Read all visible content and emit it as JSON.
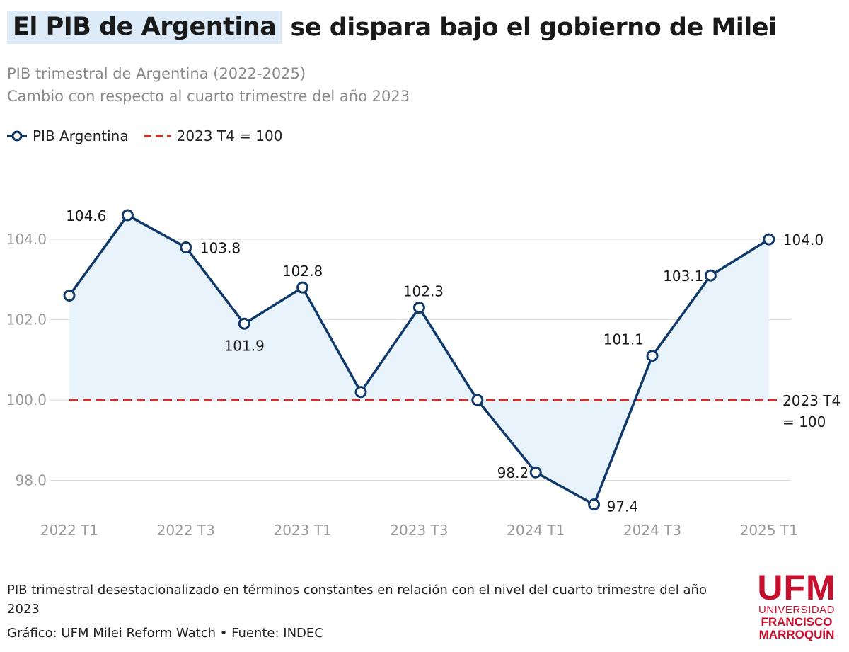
{
  "header": {
    "title_highlight": "El PIB de Argentina",
    "title_rest": "se dispara bajo el gobierno de Milei",
    "subtitle_line1": "PIB trimestral de Argentina (2022-2025)",
    "subtitle_line2": "Cambio con respecto al cuarto trimestre del año 2023"
  },
  "legend": {
    "series_label": "PIB Argentina",
    "baseline_label": "2023 T4 = 100"
  },
  "colors": {
    "series": "#0f3a6b",
    "fill": "#e8f3fb",
    "baseline": "#d0302a",
    "grid": "#dcdcdc",
    "tick": "#9a9a9a",
    "brand": "#c8102e"
  },
  "chart_data": {
    "type": "line",
    "title": "PIB trimestral de Argentina (2022-2025)",
    "x": [
      "2022 T1",
      "2022 T2",
      "2022 T3",
      "2022 T4",
      "2023 T1",
      "2023 T2",
      "2023 T3",
      "2023 T4",
      "2024 T1",
      "2024 T2",
      "2024 T3",
      "2024 T4",
      "2025 T1"
    ],
    "series": [
      {
        "name": "PIB Argentina",
        "values": [
          102.6,
          104.6,
          103.8,
          101.9,
          102.8,
          100.2,
          102.3,
          100.0,
          98.2,
          97.4,
          101.1,
          103.1,
          104.0
        ],
        "data_labels": [
          "",
          "104.6",
          "103.8",
          "101.9",
          "102.8",
          "",
          "102.3",
          "",
          "98.2",
          "97.4",
          "101.1",
          "103.1",
          "104.0"
        ]
      }
    ],
    "x_tick_labels": [
      "2022 T1",
      "2022 T3",
      "2023 T1",
      "2023 T3",
      "2024 T1",
      "2024 T3",
      "2025 T1"
    ],
    "y_ticks": [
      98.0,
      100.0,
      102.0,
      104.0
    ],
    "y_tick_labels": [
      "98.0",
      "100.0",
      "102.0",
      "104.0"
    ],
    "ylim": [
      96.6,
      105.2
    ],
    "baseline": {
      "value": 100,
      "label_line1": "2023 T4",
      "label_line2": "= 100"
    },
    "grid": true
  },
  "footer": {
    "note": "PIB trimestral desestacionalizado en términos constantes en relación con el nivel del cuarto trimestre del año 2023",
    "credit": "Gráfico: UFM Milei Reform Watch • Fuente: INDEC"
  },
  "logo": {
    "acronym": "UFM",
    "line1": "UNIVERSIDAD",
    "line2": "FRANCISCO",
    "line3": "MARROQUÍN"
  }
}
